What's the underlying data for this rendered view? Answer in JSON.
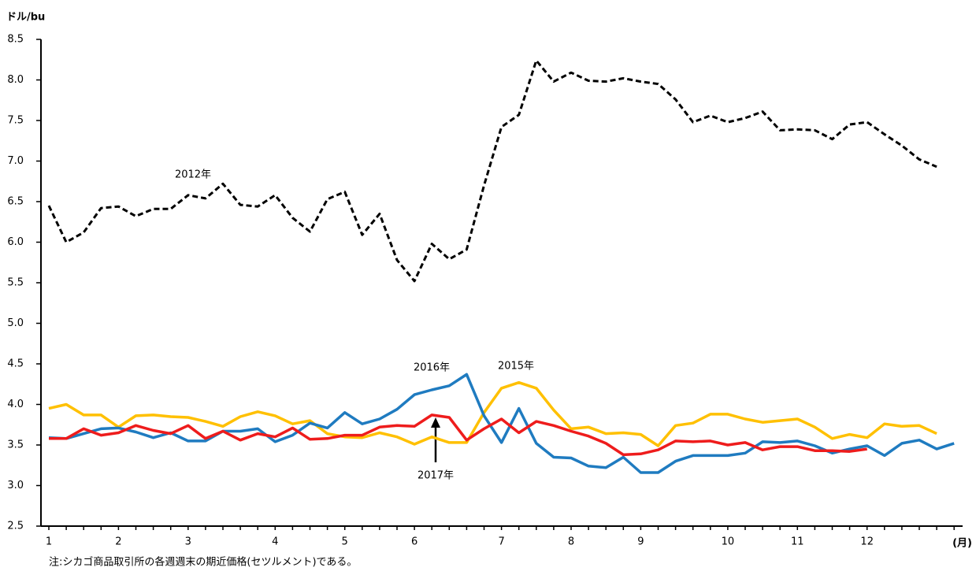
{
  "chart_data": {
    "type": "line",
    "y_label": "ドル/bu",
    "x_label": "(月)",
    "note": "注:シカゴ商品取引所の各週週末の期近価格(セツルメント)である。",
    "categories": [
      "1",
      null,
      null,
      null,
      "2",
      null,
      null,
      null,
      "3",
      null,
      null,
      null,
      null,
      "4",
      null,
      null,
      null,
      "5",
      null,
      null,
      null,
      "6",
      null,
      null,
      null,
      null,
      "7",
      null,
      null,
      null,
      "8",
      null,
      null,
      null,
      "9",
      null,
      null,
      null,
      null,
      "10",
      null,
      null,
      null,
      "11",
      null,
      null,
      null,
      "12",
      null,
      null,
      null,
      null,
      null
    ],
    "ylim": [
      2.5,
      8.5
    ],
    "yticks": [
      {
        "value": 2.5,
        "label": "2.5"
      },
      {
        "value": 3,
        "label": "3.0"
      },
      3.5,
      {
        "value": 4,
        "label": "4.0"
      },
      4.5,
      {
        "value": 5,
        "label": "5.0"
      },
      5.5,
      {
        "value": 6,
        "label": "6.0"
      },
      6.5,
      {
        "value": 7,
        "label": "7.0"
      },
      7.5,
      {
        "value": 8,
        "label": "8.0"
      },
      8.5
    ],
    "grid": false,
    "series": [
      {
        "name": "2012年",
        "color": "#000000",
        "style": "dashed",
        "values": [
          6.45,
          6.0,
          6.12,
          6.42,
          6.44,
          6.32,
          6.41,
          6.41,
          6.58,
          6.54,
          6.72,
          6.46,
          6.44,
          6.58,
          6.3,
          6.13,
          6.53,
          6.62,
          6.09,
          6.35,
          5.78,
          5.52,
          5.98,
          5.79,
          5.91,
          6.7,
          7.42,
          7.57,
          8.24,
          7.98,
          8.09,
          7.99,
          7.98,
          8.02,
          7.98,
          7.95,
          7.76,
          7.48,
          7.56,
          7.48,
          7.53,
          7.61,
          7.38,
          7.39,
          7.38,
          7.27,
          7.45,
          7.48,
          7.33,
          7.19,
          7.02,
          6.93,
          null
        ]
      },
      {
        "name": "2015年",
        "color": "#ffc000",
        "style": "solid",
        "values": [
          3.95,
          4.0,
          3.87,
          3.87,
          3.72,
          3.86,
          3.87,
          3.85,
          3.84,
          3.79,
          3.73,
          3.85,
          3.91,
          3.86,
          3.76,
          3.8,
          3.64,
          3.6,
          3.59,
          3.65,
          3.6,
          3.51,
          3.6,
          3.53,
          3.53,
          3.9,
          4.2,
          4.27,
          4.2,
          3.93,
          3.7,
          3.72,
          3.64,
          3.65,
          3.63,
          3.49,
          3.74,
          3.77,
          3.88,
          3.88,
          3.82,
          3.78,
          3.8,
          3.82,
          3.72,
          3.58,
          3.63,
          3.59,
          3.76,
          3.73,
          3.74,
          3.64,
          null
        ]
      },
      {
        "name": "2016年",
        "color": "#1f7bc0",
        "style": "solid",
        "values": [
          3.59,
          3.58,
          3.64,
          3.7,
          3.71,
          3.66,
          3.59,
          3.65,
          3.55,
          3.55,
          3.67,
          3.67,
          3.7,
          3.54,
          3.62,
          3.77,
          3.71,
          3.9,
          3.76,
          3.82,
          3.94,
          4.12,
          4.18,
          4.23,
          4.37,
          3.86,
          3.53,
          3.95,
          3.52,
          3.35,
          3.34,
          3.24,
          3.22,
          3.35,
          3.16,
          3.16,
          3.3,
          3.37,
          3.37,
          3.37,
          3.4,
          3.54,
          3.53,
          3.55,
          3.49,
          3.4,
          3.45,
          3.49,
          3.37,
          3.52,
          3.56,
          3.45,
          3.52
        ]
      },
      {
        "name": "2017年",
        "color": "#ee1c1c",
        "style": "solid",
        "values": [
          3.58,
          3.58,
          3.7,
          3.62,
          3.65,
          3.74,
          3.68,
          3.64,
          3.74,
          3.58,
          3.67,
          3.56,
          3.64,
          3.6,
          3.71,
          3.57,
          3.58,
          3.62,
          3.62,
          3.72,
          3.74,
          3.73,
          3.87,
          3.84,
          3.56,
          3.7,
          3.82,
          3.65,
          3.79,
          3.74,
          3.67,
          3.61,
          3.52,
          3.38,
          3.39,
          3.44,
          3.55,
          3.54,
          3.55,
          3.5,
          3.53,
          3.44,
          3.48,
          3.48,
          3.43,
          3.43,
          3.42,
          3.45,
          null,
          null,
          null,
          null,
          null
        ]
      }
    ]
  }
}
